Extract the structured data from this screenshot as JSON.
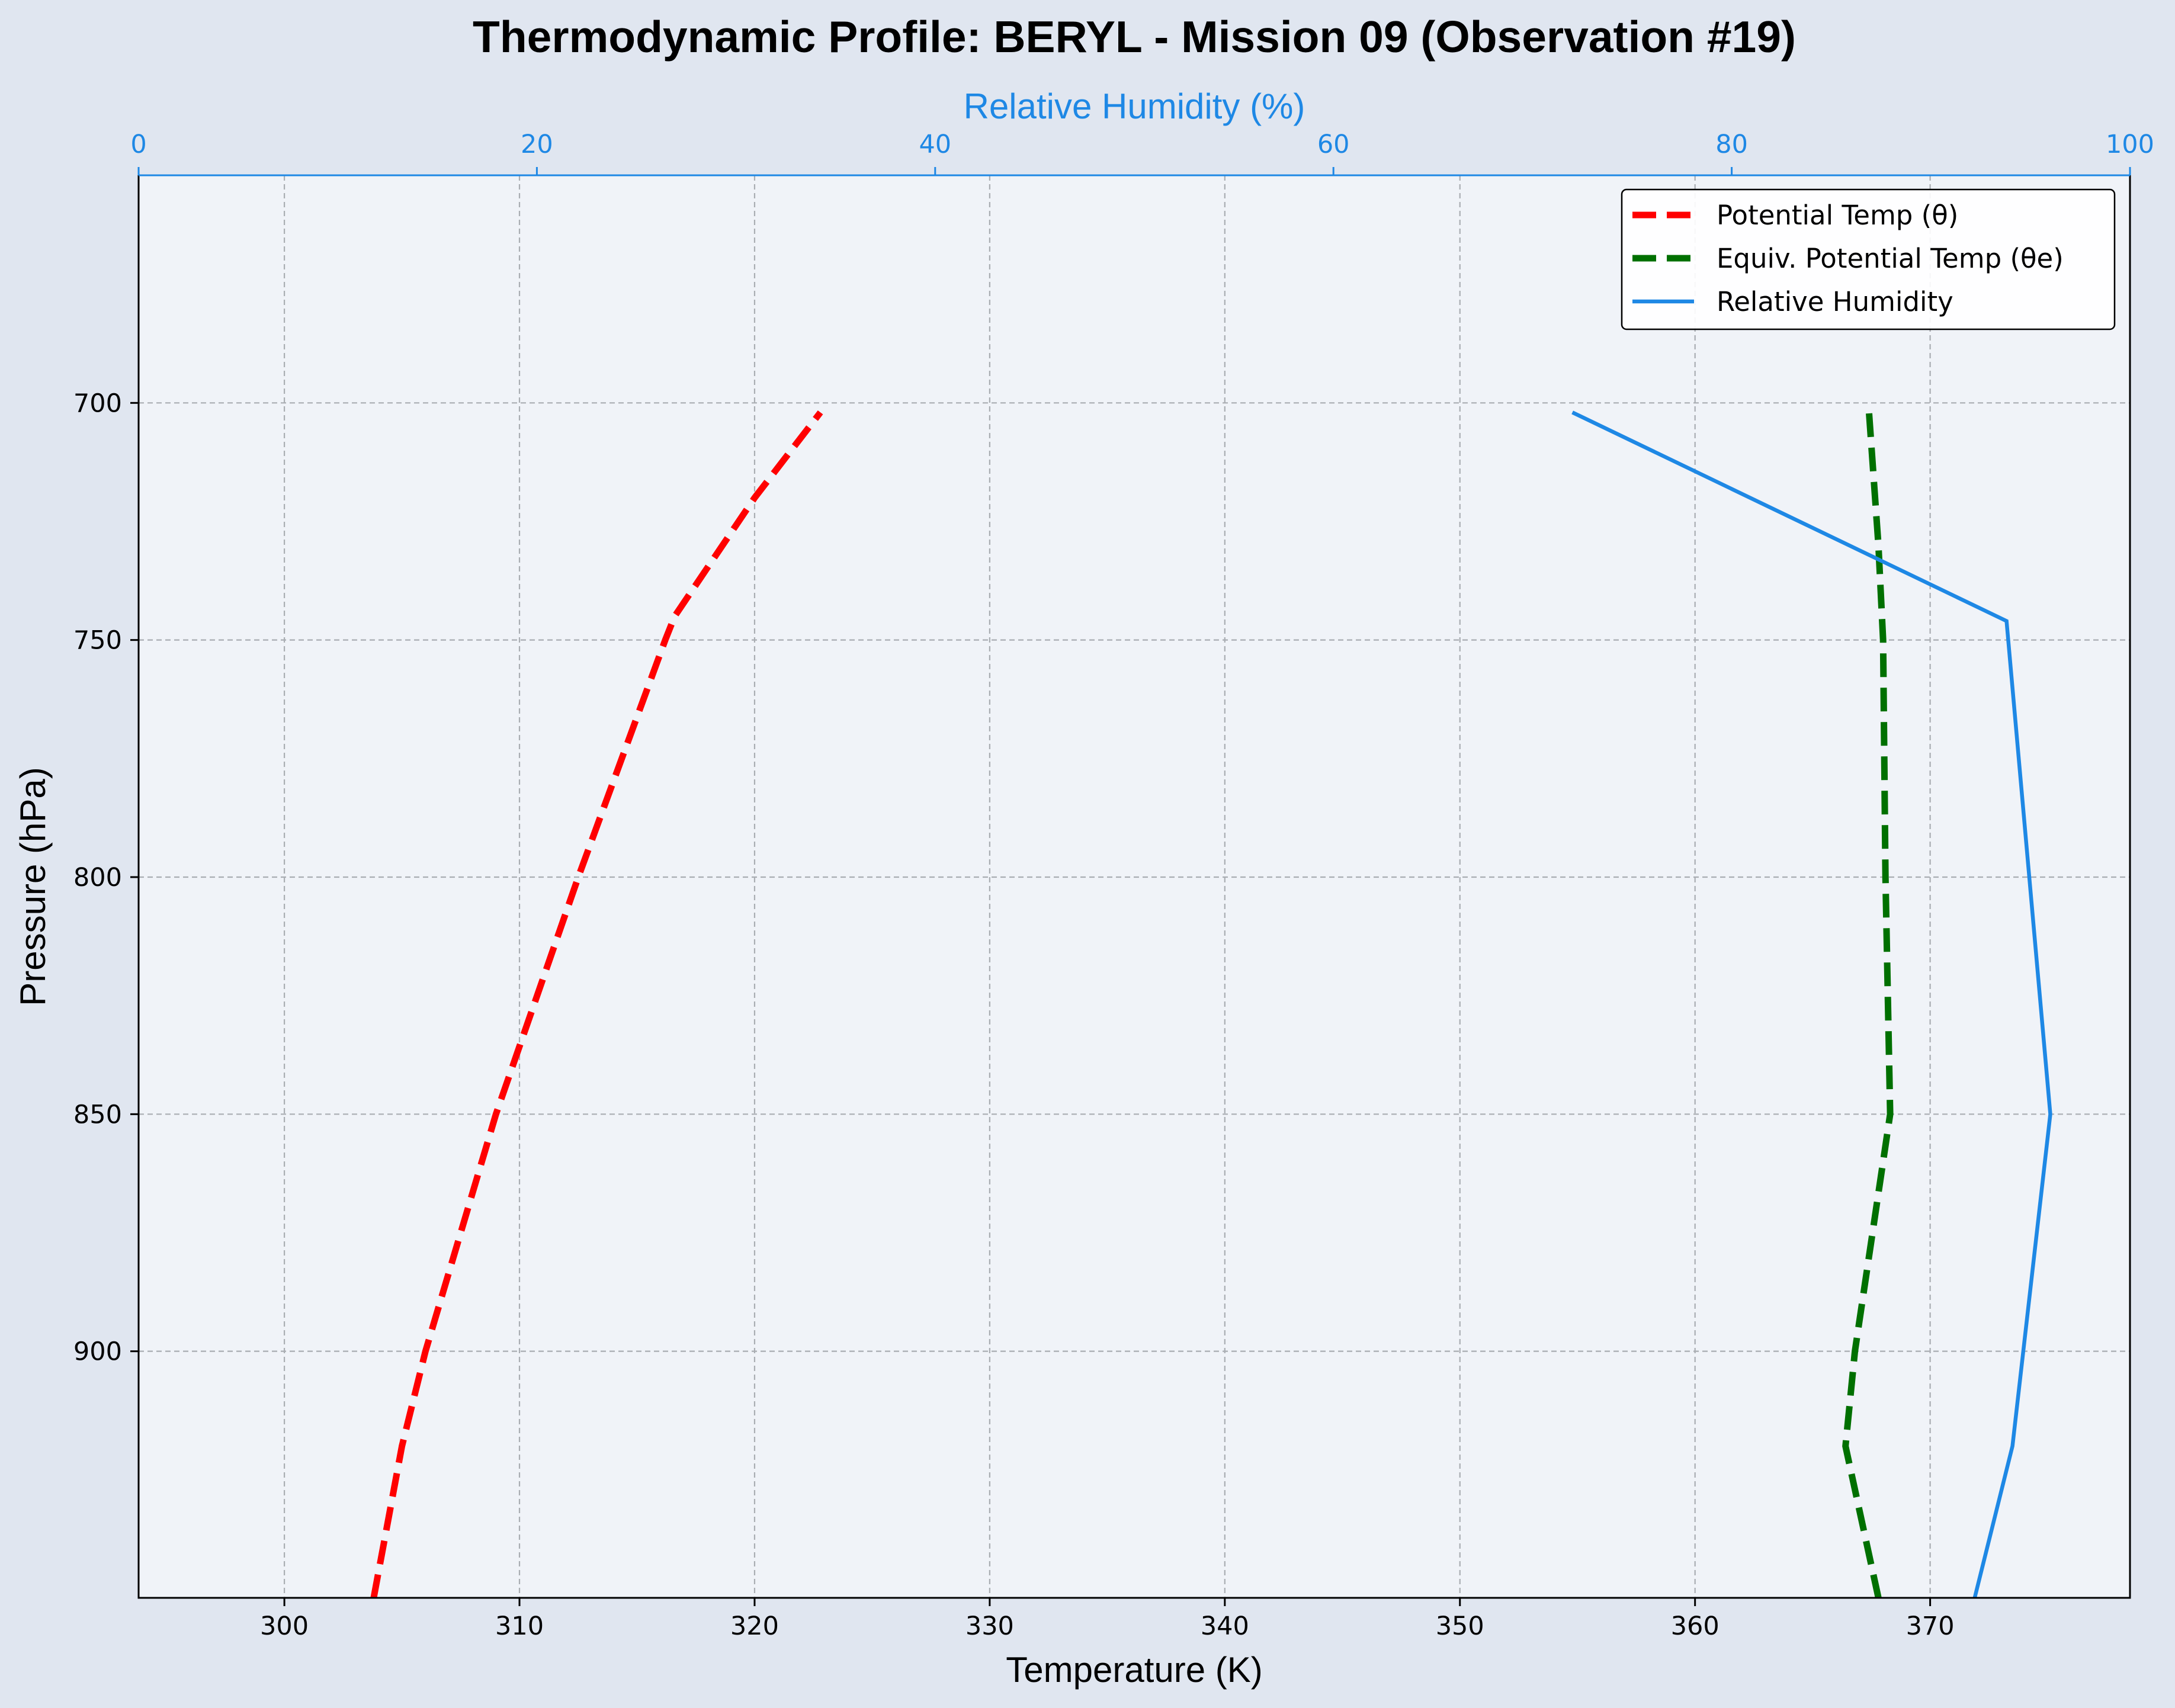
{
  "chart_data": {
    "type": "line",
    "title": "Thermodynamic Profile:  BERYL - Mission 09 (Observation #19)",
    "xlabel": "Temperature (K)",
    "ylabel": "Pressure (hPa)",
    "x2label": "Relative Humidity (%)",
    "xlim": [
      293.8,
      378.5
    ],
    "ylim": [
      952,
      652
    ],
    "x2lim": [
      0,
      100
    ],
    "xticks": [
      300,
      310,
      320,
      330,
      340,
      350,
      360,
      370
    ],
    "yticks": [
      700,
      750,
      800,
      850,
      900
    ],
    "x2ticks": [
      0,
      20,
      40,
      60,
      80,
      100
    ],
    "grid": true,
    "legend_position": "top-right",
    "series": [
      {
        "name": "Potential Temp (θ)",
        "axis": "temperature",
        "style": "dashed",
        "color": "#ff0000",
        "points": [
          {
            "p": 952,
            "x": 303.8
          },
          {
            "p": 920,
            "x": 305.0
          },
          {
            "p": 900,
            "x": 306.0
          },
          {
            "p": 850,
            "x": 309.0
          },
          {
            "p": 800,
            "x": 312.5
          },
          {
            "p": 750,
            "x": 316.2
          },
          {
            "p": 745,
            "x": 316.6
          },
          {
            "p": 720,
            "x": 320.0
          },
          {
            "p": 702,
            "x": 322.8
          }
        ]
      },
      {
        "name": "Equiv. Potential Temp (θe)",
        "axis": "temperature",
        "style": "dashed",
        "color": "#007000",
        "points": [
          {
            "p": 952,
            "x": 367.8
          },
          {
            "p": 920,
            "x": 366.4
          },
          {
            "p": 900,
            "x": 366.8
          },
          {
            "p": 850,
            "x": 368.3
          },
          {
            "p": 800,
            "x": 368.1
          },
          {
            "p": 750,
            "x": 368.0
          },
          {
            "p": 730,
            "x": 367.8
          },
          {
            "p": 702,
            "x": 367.4
          }
        ]
      },
      {
        "name": "Relative Humidity",
        "axis": "humidity",
        "style": "solid",
        "color": "#1e88e5",
        "points": [
          {
            "p": 952,
            "x": 92.2
          },
          {
            "p": 920,
            "x": 94.1
          },
          {
            "p": 850,
            "x": 96.0
          },
          {
            "p": 746,
            "x": 93.8
          },
          {
            "p": 702,
            "x": 72.0
          }
        ]
      }
    ]
  }
}
